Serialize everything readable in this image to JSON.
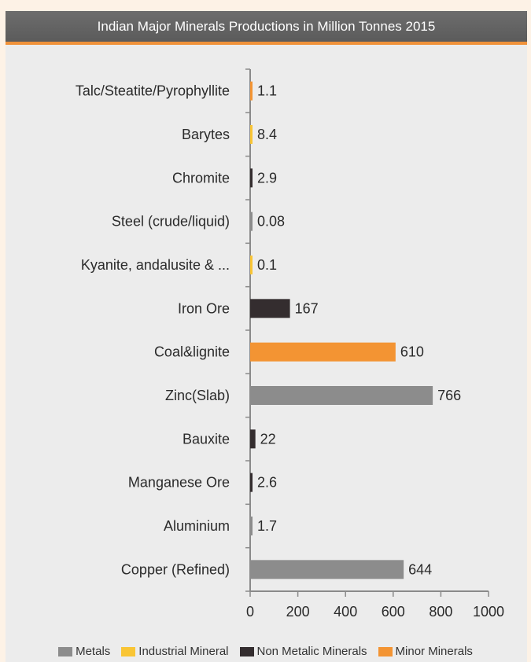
{
  "chart_data": {
    "type": "bar",
    "orientation": "horizontal",
    "title": "Indian Major Minerals Productions in Million Tonnes 2015",
    "categories": [
      "Copper (Refined)",
      "Aluminium",
      "Manganese Ore",
      "Bauxite",
      "Zinc(Slab)",
      "Coal&lignite",
      "Iron Ore",
      "Kyanite, andalusite & ...",
      "Steel (crude/liquid)",
      "Chromite",
      "Barytes",
      "Talc/Steatite/Pyrophyllite"
    ],
    "values": [
      644,
      1.7,
      2.6,
      22,
      766,
      610,
      167,
      0.1,
      0.08,
      2.9,
      8.4,
      1.1
    ],
    "value_labels": [
      "644",
      "1.7",
      "2.6",
      "22",
      "766",
      "610",
      "167",
      "0.1",
      "0.08",
      "2.9",
      "8.4",
      "1.1"
    ],
    "bar_groups": [
      "Metals",
      "Metals",
      "Non Metalic Minerals",
      "Non Metalic Minerals",
      "Metals",
      "Minor Minerals",
      "Non Metalic Minerals",
      "Industrial Mineral",
      "Metals",
      "Non Metalic Minerals",
      "Industrial Mineral",
      "Minor Minerals"
    ],
    "xlim": [
      0,
      1000
    ],
    "xticks": [
      0,
      200,
      400,
      600,
      800,
      1000
    ],
    "grid": false,
    "legend_position": "bottom",
    "legend": [
      {
        "name": "Metals",
        "color": "#8c8c8c"
      },
      {
        "name": "Industrial Mineral",
        "color": "#f9c535"
      },
      {
        "name": "Non Metalic Minerals",
        "color": "#342d2f"
      },
      {
        "name": "Minor Minerals",
        "color": "#f39433"
      }
    ]
  },
  "colors": {
    "header_bg": "#626262",
    "header_accent": "#f0923a",
    "panel_bg": "#ececec",
    "page_bg": "#fdf2e6",
    "axis": "#8a8a8a"
  }
}
